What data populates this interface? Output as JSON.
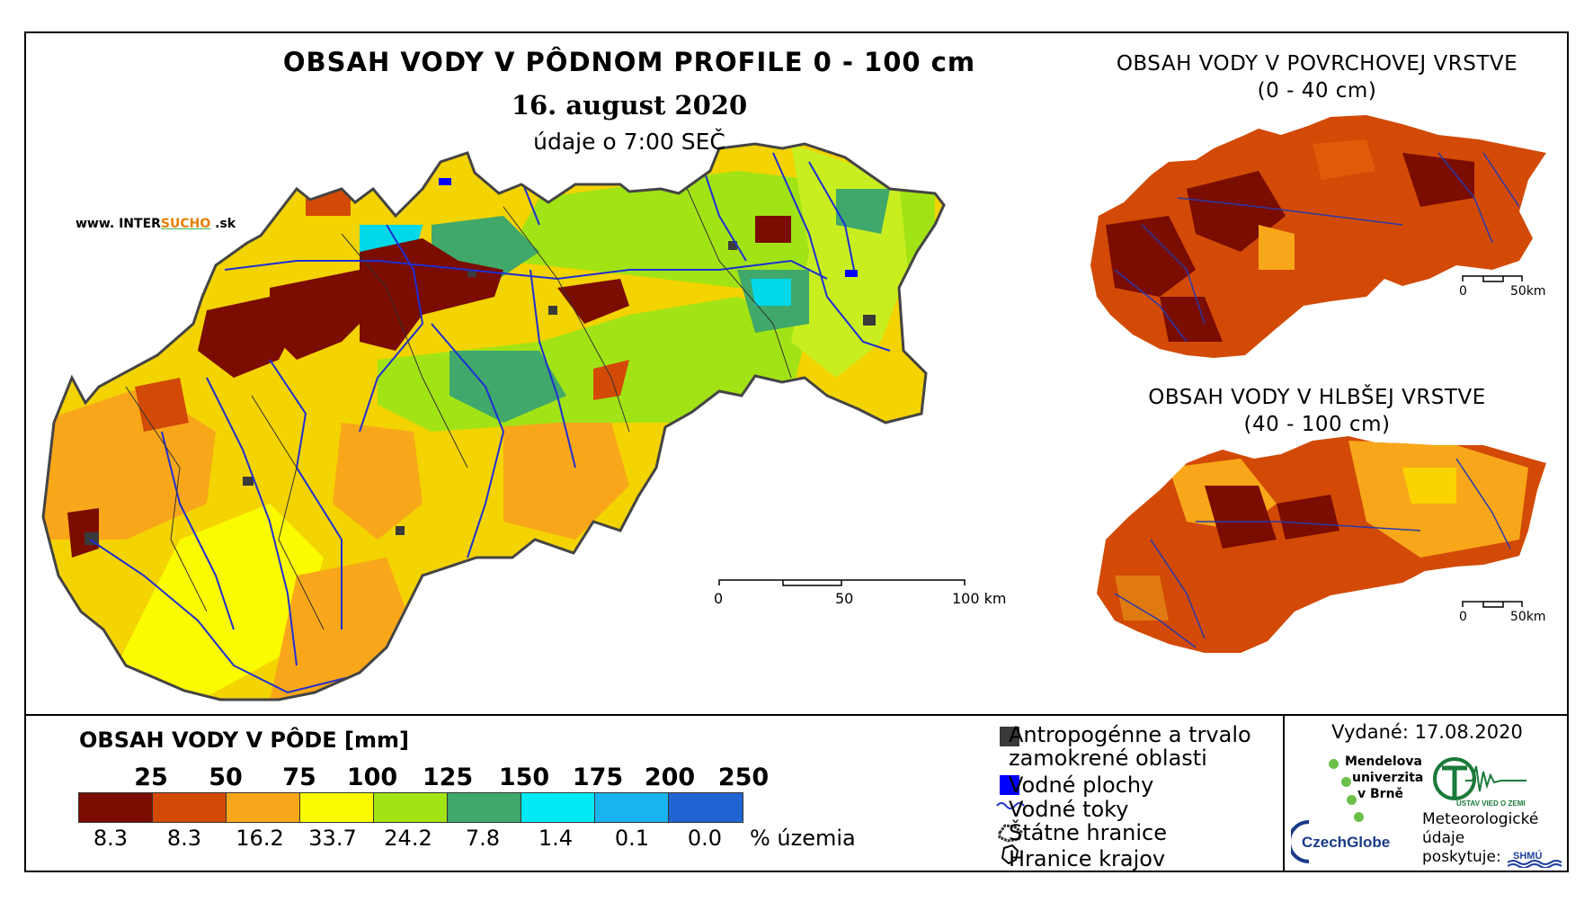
{
  "title": "OBSAH VODY V PÔDNOM PROFILE 0 - 100 cm",
  "date": "16. august 2020",
  "data_time": "údaje o 7:00 SEČ",
  "website": {
    "prefix": "www. INTER",
    "highlight": "SUCHO",
    "suffix": " .sk"
  },
  "inset_top": {
    "title": "OBSAH VODY V POVRCHOVEJ VRSTVE",
    "subtitle": "(0 - 40 cm)",
    "scale_0": "0",
    "scale_50": "50km"
  },
  "inset_bottom": {
    "title": "OBSAH VODY V HLBŠEJ VRSTVE",
    "subtitle": "(40 - 100 cm)",
    "scale_0": "0",
    "scale_50": "50km"
  },
  "main_scale": {
    "s0": "0",
    "s50": "50",
    "s100": "100 km"
  },
  "legend": {
    "title": "OBSAH VODY V PÔDE [mm]",
    "thresholds": [
      "25",
      "50",
      "75",
      "100",
      "125",
      "150",
      "175",
      "200",
      "250"
    ],
    "percentages": [
      "8.3",
      "8.3",
      "16.2",
      "33.7",
      "24.2",
      "7.8",
      "1.4",
      "0.1",
      "0.0"
    ],
    "unit": "% územia",
    "colors": [
      "#7a0c00",
      "#d24a06",
      "#f9a71a",
      "#fbfb00",
      "#a2e316",
      "#3fa86a",
      "#00eaf5",
      "#1ab4f0",
      "#1f64d2"
    ]
  },
  "symbols": {
    "urban_line1": "Antropogénne a trvalo",
    "urban_line2": "zamokrené oblasti",
    "water_bodies": "Vodné plochy",
    "rivers": "Vodné toky",
    "state_border": "Štátne hranice",
    "region_border": "Hranice krajov"
  },
  "issued": "Vydané: 17.08.2020",
  "logos": {
    "mendel": [
      "Mendelova",
      "univerzita",
      "v Brně"
    ],
    "uvoz": "ÚSTAV VIED O ZEMI",
    "czechglobe": "CzechGlobe",
    "shmu": "SHMÚ",
    "meteo": [
      "Meteorologické",
      "údaje",
      "poskytuje:"
    ]
  }
}
